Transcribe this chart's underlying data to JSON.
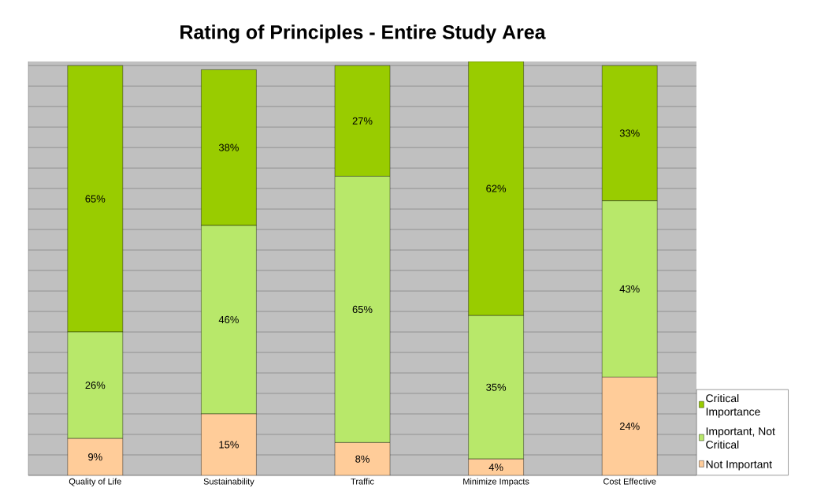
{
  "chart_data": {
    "type": "bar",
    "stacked": true,
    "title": "Rating of Principles - Entire Study Area",
    "categories": [
      "Quality of Life",
      "Sustainability",
      "Traffic",
      "Minimize Impacts",
      "Cost Effective"
    ],
    "series": [
      {
        "name": "Not Important",
        "color": "#ffcc99",
        "values": [
          9,
          15,
          8,
          4,
          24
        ],
        "value_labels": [
          "9%",
          "15%",
          "8%",
          "4%",
          "24%"
        ]
      },
      {
        "name": "Important, Not Critical",
        "color": "#b8e86a",
        "values": [
          26,
          46,
          65,
          35,
          43
        ],
        "value_labels": [
          "26%",
          "46%",
          "65%",
          "35%",
          "43%"
        ]
      },
      {
        "name": "Critical Importance",
        "color": "#99cc00",
        "values": [
          65,
          38,
          27,
          62,
          33
        ],
        "value_labels": [
          "65%",
          "38%",
          "27%",
          "62%",
          "33%"
        ]
      }
    ],
    "grid": "y",
    "legend": "bottom right",
    "tick_labels": "x"
  }
}
